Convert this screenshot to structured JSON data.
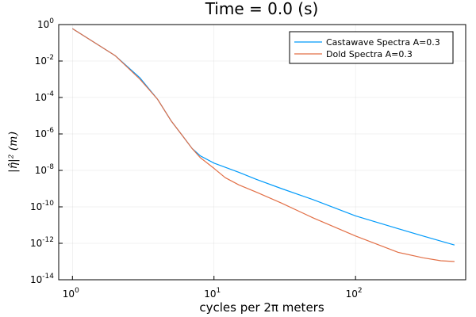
{
  "chart_data": {
    "type": "line",
    "title": "Time = 0.0 (s)",
    "xlabel": "cycles per 2π meters",
    "ylabel": "|η̂|² (m)",
    "xscale": "log",
    "yscale": "log",
    "xlim": [
      0.8,
      600
    ],
    "ylim": [
      1e-14,
      1
    ],
    "grid": true,
    "legend_position": "top-right",
    "x_ticks": [
      {
        "base": "10",
        "exp": "0",
        "value": 1
      },
      {
        "base": "10",
        "exp": "1",
        "value": 10
      },
      {
        "base": "10",
        "exp": "2",
        "value": 100
      }
    ],
    "y_ticks": [
      {
        "base": "10",
        "exp": "0",
        "value": 0
      },
      {
        "base": "10",
        "exp": "-2",
        "value": -2
      },
      {
        "base": "10",
        "exp": "-4",
        "value": -4
      },
      {
        "base": "10",
        "exp": "-6",
        "value": -6
      },
      {
        "base": "10",
        "exp": "-8",
        "value": -8
      },
      {
        "base": "10",
        "exp": "-10",
        "value": -10
      },
      {
        "base": "10",
        "exp": "-12",
        "value": -12
      },
      {
        "base": "10",
        "exp": "-14",
        "value": -14
      }
    ],
    "series": [
      {
        "name": "Castawave Spectra A=0.3",
        "color": "#009AFA",
        "x": [
          1,
          2,
          3,
          4,
          5,
          6,
          7,
          8,
          10,
          15,
          20,
          30,
          50,
          100,
          200,
          300,
          500
        ],
        "y": [
          0.6,
          0.02,
          0.0012,
          7.9e-05,
          5e-06,
          7.9e-07,
          1.6e-07,
          6.3e-08,
          2.5e-08,
          7.9e-09,
          3.2e-09,
          1e-09,
          2.5e-10,
          3.2e-11,
          6.3e-12,
          2.5e-12,
          8e-13
        ]
      },
      {
        "name": "Dold Spectra A=0.3",
        "color": "#E26F46",
        "x": [
          1,
          2,
          3,
          4,
          5,
          6,
          7,
          8,
          10,
          12,
          15,
          20,
          30,
          50,
          100,
          200,
          300,
          400,
          500
        ],
        "y": [
          0.6,
          0.02,
          0.001,
          7.9e-05,
          5e-06,
          7.9e-07,
          1.6e-07,
          5e-08,
          1.3e-08,
          4e-09,
          1.6e-09,
          6.3e-10,
          1.6e-10,
          2.5e-11,
          2.5e-12,
          3.2e-13,
          1.6e-13,
          1.1e-13,
          1e-13
        ]
      }
    ]
  }
}
